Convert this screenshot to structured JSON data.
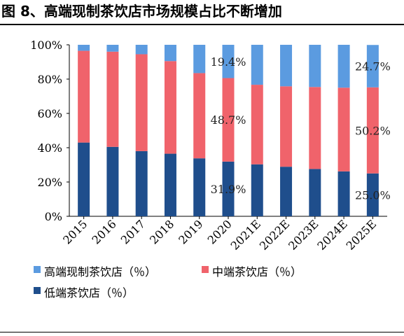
{
  "figure_title": "图 8、高端现制茶饮店市场规模占比不断增加",
  "chart_data": {
    "type": "bar",
    "stacked": true,
    "categories": [
      "2015",
      "2016",
      "2017",
      "2018",
      "2019",
      "2020",
      "2021E",
      "2022E",
      "2023E",
      "2024E",
      "2025E"
    ],
    "series": [
      {
        "name": "低端茶饮店（％）",
        "color": "#1f4e8c",
        "values": [
          43.0,
          40.5,
          38.0,
          36.5,
          33.8,
          31.9,
          30.3,
          28.9,
          27.6,
          26.2,
          25.0
        ]
      },
      {
        "name": "中端茶饮店（％）",
        "color": "#f0636b",
        "values": [
          53.5,
          55.5,
          56.5,
          54.0,
          49.7,
          48.7,
          46.4,
          46.9,
          47.8,
          48.8,
          50.2
        ]
      },
      {
        "name": "高端现制茶饮店（％）",
        "color": "#5b9be0",
        "values": [
          3.5,
          4.0,
          5.5,
          9.5,
          16.5,
          19.4,
          23.3,
          24.2,
          24.6,
          25.0,
          24.7
        ]
      }
    ],
    "ylim": [
      0,
      100
    ],
    "yticks": [
      "0%",
      "20%",
      "40%",
      "60%",
      "80%",
      "100%"
    ],
    "data_labels": [
      {
        "category": "2020",
        "series": 2,
        "text": "19.4%"
      },
      {
        "category": "2020",
        "series": 1,
        "text": "48.7%"
      },
      {
        "category": "2020",
        "series": 0,
        "text": "31.9%"
      },
      {
        "category": "2025E",
        "series": 2,
        "text": "24.7%"
      },
      {
        "category": "2025E",
        "series": 1,
        "text": "50.2%"
      },
      {
        "category": "2025E",
        "series": 0,
        "text": "25.0%"
      }
    ],
    "legend_order": [
      2,
      1,
      0
    ],
    "legend_position": "bottom"
  }
}
